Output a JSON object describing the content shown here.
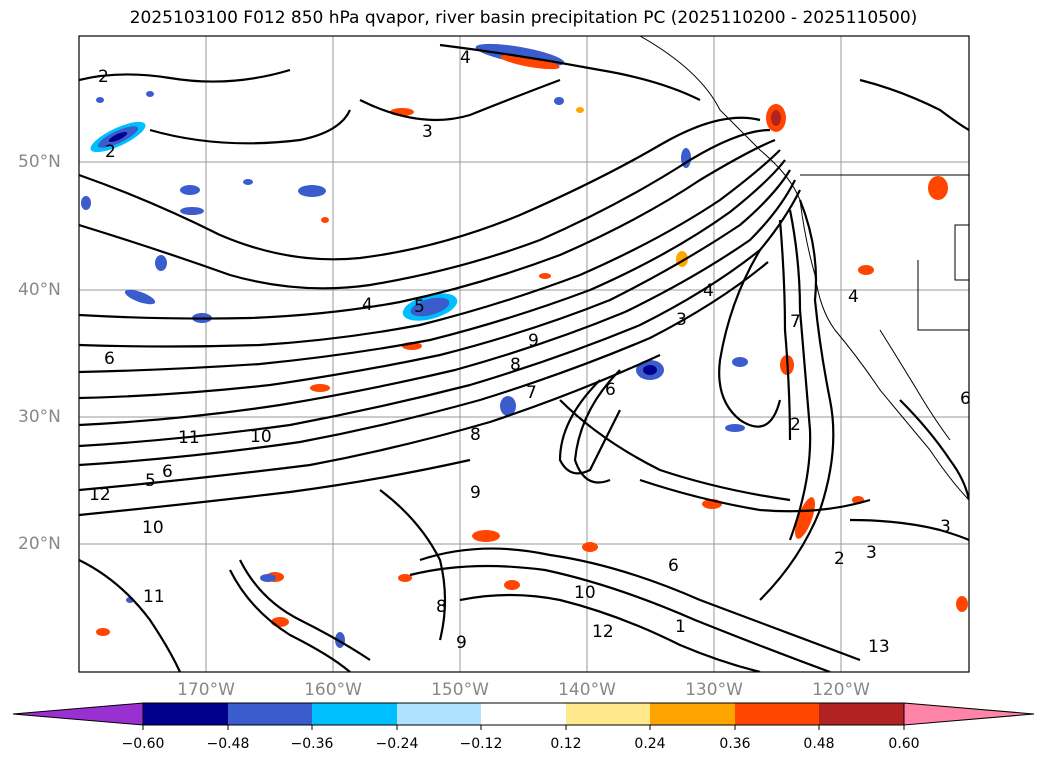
{
  "title": "2025103100 F012 850 hPa qvapor, river basin precipitation PC (2025110200 - 2025110500)",
  "map": {
    "lat_labels": [
      "50°N",
      "40°N",
      "30°N",
      "20°N"
    ],
    "lon_labels": [
      "170°W",
      "160°W",
      "150°W",
      "140°W",
      "130°W",
      "120°W"
    ],
    "contour_labels": [
      "2",
      "4",
      "3",
      "2",
      "4",
      "5",
      "6",
      "10",
      "11",
      "9",
      "8",
      "7",
      "6",
      "5",
      "12",
      "10",
      "9",
      "8",
      "11",
      "3",
      "4",
      "2",
      "3",
      "2",
      "3",
      "6",
      "7",
      "6",
      "1",
      "8",
      "9",
      "12",
      "13",
      "10",
      "4",
      "6"
    ]
  },
  "colorbar": {
    "ticks": [
      "−0.60",
      "−0.48",
      "−0.36",
      "−0.24",
      "−0.12",
      "0.12",
      "0.24",
      "0.36",
      "0.48",
      "0.60"
    ],
    "colors": [
      "#9b30d2",
      "#00008c",
      "#3a5ccc",
      "#00bfff",
      "#b0e2ff",
      "#ffffff",
      "#ffe98c",
      "#ffa500",
      "#ff4500",
      "#b22222",
      "#ff85a8"
    ]
  }
}
